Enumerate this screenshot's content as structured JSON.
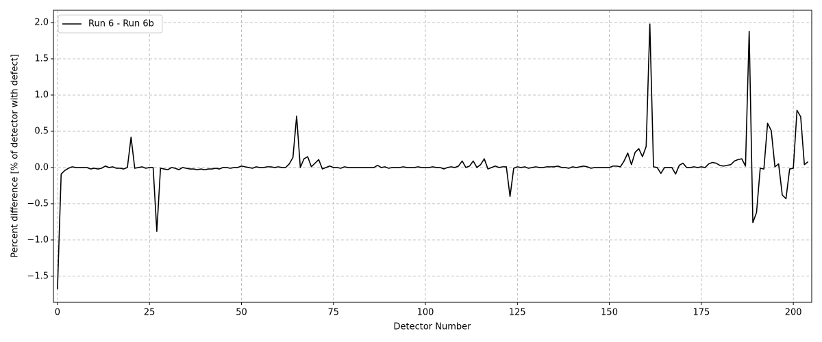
{
  "chart_data": {
    "type": "line",
    "xlabel": "Detector Number",
    "ylabel": "Percent difference [% of detector with defect]",
    "x": [
      0,
      1,
      2,
      3,
      4,
      5,
      6,
      7,
      8,
      9,
      10,
      11,
      12,
      13,
      14,
      15,
      16,
      17,
      18,
      19,
      20,
      21,
      22,
      23,
      24,
      25,
      26,
      27,
      28,
      29,
      30,
      31,
      32,
      33,
      34,
      35,
      36,
      37,
      38,
      39,
      40,
      41,
      42,
      43,
      44,
      45,
      46,
      47,
      48,
      49,
      50,
      51,
      52,
      53,
      54,
      55,
      56,
      57,
      58,
      59,
      60,
      61,
      62,
      63,
      64,
      65,
      66,
      67,
      68,
      69,
      70,
      71,
      72,
      73,
      74,
      75,
      76,
      77,
      78,
      79,
      80,
      81,
      82,
      83,
      84,
      85,
      86,
      87,
      88,
      89,
      90,
      91,
      92,
      93,
      94,
      95,
      96,
      97,
      98,
      99,
      100,
      101,
      102,
      103,
      104,
      105,
      106,
      107,
      108,
      109,
      110,
      111,
      112,
      113,
      114,
      115,
      116,
      117,
      118,
      119,
      120,
      121,
      122,
      123,
      124,
      125,
      126,
      127,
      128,
      129,
      130,
      131,
      132,
      133,
      134,
      135,
      136,
      137,
      138,
      139,
      140,
      141,
      142,
      143,
      144,
      145,
      146,
      147,
      148,
      149,
      150,
      151,
      152,
      153,
      154,
      155,
      156,
      157,
      158,
      159,
      160,
      161,
      162,
      163,
      164,
      165,
      166,
      167,
      168,
      169,
      170,
      171,
      172,
      173,
      174,
      175,
      176,
      177,
      178,
      179,
      180,
      181,
      182,
      183,
      184,
      185,
      186,
      187,
      188,
      189,
      190,
      191,
      192,
      193,
      194,
      195,
      196,
      197,
      198,
      199,
      200,
      201,
      202,
      203,
      204
    ],
    "series": [
      {
        "name": "Run 6 - Run 6b",
        "color": "#000000",
        "values": [
          -1.68,
          -0.09,
          -0.04,
          -0.01,
          0.01,
          0,
          0,
          0,
          0,
          -0.02,
          -0.01,
          -0.02,
          -0.01,
          0.02,
          0,
          0.01,
          -0.01,
          -0.01,
          -0.02,
          0,
          0.42,
          -0.01,
          0,
          0.01,
          -0.01,
          0,
          0,
          -0.88,
          -0.01,
          -0.02,
          -0.03,
          0,
          -0.01,
          -0.03,
          0,
          -0.01,
          -0.02,
          -0.02,
          -0.03,
          -0.02,
          -0.03,
          -0.02,
          -0.02,
          -0.01,
          -0.02,
          0,
          0,
          -0.01,
          0,
          0,
          0.02,
          0.01,
          0,
          -0.01,
          0.01,
          0,
          0,
          0.01,
          0.01,
          0,
          0.01,
          0,
          0,
          0.05,
          0.14,
          0.71,
          0,
          0.12,
          0.15,
          0.01,
          0.06,
          0.11,
          -0.02,
          0,
          0.02,
          0,
          0,
          -0.01,
          0.01,
          0,
          0,
          0,
          0,
          0,
          0,
          0,
          0,
          0.03,
          0,
          0.01,
          -0.01,
          0,
          0,
          0,
          0.01,
          0,
          0,
          0,
          0.01,
          0,
          0,
          0,
          0.01,
          0,
          0,
          -0.02,
          0,
          0.01,
          0,
          0.02,
          0.09,
          0,
          0.02,
          0.09,
          0,
          0.04,
          0.12,
          -0.02,
          0,
          0.02,
          0,
          0.01,
          0.01,
          -0.4,
          -0.01,
          0.01,
          0,
          0.01,
          -0.01,
          0,
          0.01,
          0,
          0,
          0.01,
          0.01,
          0.01,
          0.02,
          0,
          0,
          -0.01,
          0.01,
          0,
          0.01,
          0.02,
          0.01,
          -0.01,
          0,
          0,
          0,
          0,
          0,
          0.02,
          0.02,
          0.01,
          0.09,
          0.2,
          0.04,
          0.21,
          0.26,
          0.15,
          0.29,
          1.98,
          0.01,
          0,
          -0.08,
          0,
          0,
          0,
          -0.09,
          0.03,
          0.06,
          0,
          0,
          0.01,
          0,
          0.01,
          0,
          0.05,
          0.07,
          0.06,
          0.03,
          0.02,
          0.03,
          0.04,
          0.09,
          0.11,
          0.12,
          0.02,
          1.88,
          -0.76,
          -0.62,
          -0.01,
          -0.02,
          0.61,
          0.51,
          0.01,
          0.05,
          -0.38,
          -0.43,
          -0.02,
          -0.01,
          0.79,
          0.7,
          0.04,
          0.08
        ]
      }
    ],
    "xlim": [
      -1.1,
      205
    ],
    "ylim": [
      -1.86,
      2.17
    ],
    "xticks": [
      0,
      25,
      50,
      75,
      100,
      125,
      150,
      175,
      200
    ],
    "yticks": [
      {
        "value": -1.5,
        "label": "−1.5"
      },
      {
        "value": -1.0,
        "label": "−1.0"
      },
      {
        "value": -0.5,
        "label": "−0.5"
      },
      {
        "value": 0,
        "label": "0.0"
      },
      {
        "value": 0.5,
        "label": "0.5"
      },
      {
        "value": 1.0,
        "label": "1.0"
      },
      {
        "value": 1.5,
        "label": "1.5"
      },
      {
        "value": 2.0,
        "label": "2.0"
      }
    ],
    "grid": true,
    "legend": "upper-left"
  }
}
